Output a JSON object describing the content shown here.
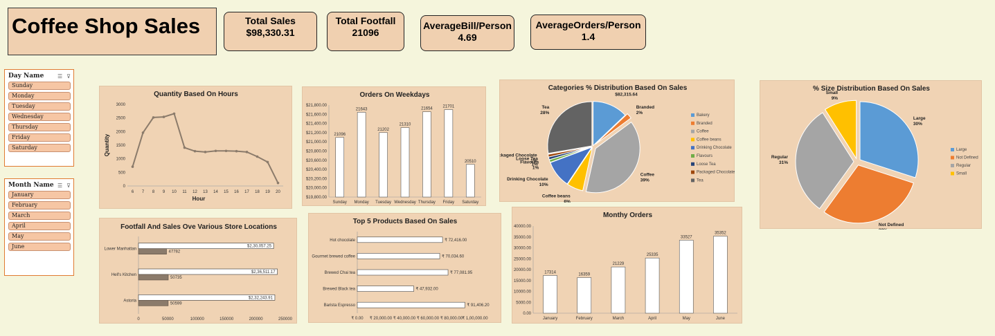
{
  "dashboard": {
    "title": "Coffee Shop Sales"
  },
  "kpis": [
    {
      "label": "Total Sales",
      "value": "$98,330.31"
    },
    {
      "label": "Total Footfall",
      "value": "21096"
    },
    {
      "label": "AverageBill/Person",
      "value": "4.69"
    },
    {
      "label": "AverageOrders/Person",
      "value": "1.4"
    }
  ],
  "slicers": {
    "day": {
      "title": "Day Name",
      "items": [
        "Sunday",
        "Monday",
        "Tuesday",
        "Wednesday",
        "Thursday",
        "Friday",
        "Saturday"
      ]
    },
    "month": {
      "title": "Month Name",
      "items": [
        "January",
        "February",
        "March",
        "April",
        "May",
        "June"
      ]
    }
  },
  "chart_data": [
    {
      "id": "hours",
      "type": "line",
      "title": "Quantity Based On Hours",
      "xlabel": "Hour",
      "ylabel": "Quantity",
      "x": [
        "6",
        "7",
        "8",
        "9",
        "10",
        "11",
        "12",
        "13",
        "14",
        "15",
        "16",
        "17",
        "18",
        "19",
        "20"
      ],
      "values": [
        710,
        1960,
        2520,
        2540,
        2660,
        1410,
        1280,
        1250,
        1290,
        1290,
        1280,
        1250,
        1080,
        880,
        110
      ],
      "yticks": [
        "0",
        "500",
        "1000",
        "1500",
        "2000",
        "2500",
        "3000"
      ],
      "ylim": [
        0,
        3000
      ],
      "color": "#8b7b6b"
    },
    {
      "id": "weekdays",
      "type": "bar",
      "title": "Orders On Weekdays",
      "categories": [
        "Sunday",
        "Monday",
        "Tuesday",
        "Wednesday",
        "Thursday",
        "Friday",
        "Saturday"
      ],
      "values": [
        21096,
        21643,
        21202,
        21310,
        21654,
        21701,
        20510
      ],
      "labels": [
        "21096",
        "21643",
        "21202",
        "21310",
        "21654",
        "21701",
        "20510"
      ],
      "yticks": [
        "$19,800.00",
        "$20,000.00",
        "$20,200.00",
        "$20,400.00",
        "$20,600.00",
        "$20,800.00",
        "$21,000.00",
        "$21,200.00",
        "$21,400.00",
        "$21,600.00",
        "$21,800.00"
      ],
      "ylim": [
        19800,
        21800
      ]
    },
    {
      "id": "categories",
      "type": "pie",
      "title": "Categories % Distribution Based On Sales",
      "labels": [
        "Bakery",
        "Branded",
        "Coffee",
        "Coffee beans",
        "Drinking Chocolate",
        "Flavours",
        "Loose Tea",
        "Packaged Chocolate",
        "Tea"
      ],
      "values": [
        13,
        2,
        39,
        6,
        10,
        1,
        1,
        1,
        28
      ],
      "colors": [
        "#5b9bd5",
        "#ed7d31",
        "#a5a5a5",
        "#ffc000",
        "#4472c4",
        "#70ad47",
        "#264478",
        "#9e480e",
        "#636363"
      ],
      "slice_labels": [
        {
          "name": "",
          "value": "$82,315.64"
        },
        {
          "name": "Branded",
          "value": "2%"
        },
        {
          "name": "Coffee",
          "value": "39%"
        },
        {
          "name": "Coffee beans",
          "value": "6%"
        },
        {
          "name": "Drinking Chocolate",
          "value": "10%"
        },
        {
          "name": "Flavours",
          "value": "1%"
        },
        {
          "name": "Loose Tea",
          "value": "1%"
        },
        {
          "name": "Packaged Chocolate",
          "value": "1%"
        },
        {
          "name": "Tea",
          "value": "28%"
        }
      ],
      "legend": "right"
    },
    {
      "id": "sizes",
      "type": "pie",
      "title": "% Size Distribution Based On Sales",
      "labels": [
        "Large",
        "Not Defined",
        "Regular",
        "Small"
      ],
      "values": [
        30,
        30,
        31,
        9
      ],
      "colors": [
        "#5b9bd5",
        "#ed7d31",
        "#a5a5a5",
        "#ffc000"
      ],
      "slice_labels": [
        {
          "name": "Large",
          "value": "30%"
        },
        {
          "name": "Not Defined",
          "value": "30%"
        },
        {
          "name": "Regular",
          "value": "31%"
        },
        {
          "name": "Small",
          "value": "9%"
        }
      ],
      "legend": "right"
    },
    {
      "id": "footfall",
      "type": "bar",
      "title": "Footfall And Sales Ove Various Store Locations",
      "categories": [
        "Lower Manhattan",
        "Hell's Kitchen",
        "Astoria"
      ],
      "series": [
        {
          "values": [
            230057.25,
            236511.17,
            232243.91
          ],
          "labels": [
            "$2,30,057.25",
            "$2,36,511.17",
            "$2,32,243.91"
          ]
        },
        {
          "values": [
            47782,
            50735,
            50599
          ],
          "labels": [
            "47782",
            "50735",
            "50599"
          ]
        }
      ],
      "xticks": [
        "0",
        "50000",
        "100000",
        "150000",
        "200000",
        "250000"
      ],
      "xlim": [
        0,
        250000
      ]
    },
    {
      "id": "products",
      "type": "bar",
      "title": "Top 5 Products Based On Sales",
      "categories": [
        "Hot chocolate",
        "Gourmet brewed coffee",
        "Brewed Chai tea",
        "Brewed Black tea",
        "Barista Espresso"
      ],
      "values": [
        72416,
        70034.6,
        77081.95,
        47932,
        91406.2
      ],
      "labels": [
        "₹ 72,416.00",
        "₹ 70,034.60",
        "₹ 77,081.95",
        "₹ 47,932.00",
        "₹ 91,406.20"
      ],
      "xticks": [
        "₹ 0.00",
        "₹ 20,000.00",
        "₹ 40,000.00",
        "₹ 60,000.00",
        "₹ 80,000.00",
        "₹ 1,00,000.00"
      ],
      "xlim": [
        0,
        100000
      ]
    },
    {
      "id": "monthly",
      "type": "bar",
      "title": "Monthy Orders",
      "categories": [
        "January",
        "February",
        "March",
        "April",
        "May",
        "June"
      ],
      "values": [
        17314,
        16359,
        21229,
        25335,
        33527,
        35352
      ],
      "labels": [
        "17314",
        "16359",
        "21229",
        "25335",
        "33527",
        "35352"
      ],
      "yticks": [
        "0.00",
        "5000.00",
        "10000.00",
        "15000.00",
        "20000.00",
        "25000.00",
        "30000.00",
        "35000.00",
        "40000.00"
      ],
      "ylim": [
        0,
        40000
      ]
    }
  ]
}
